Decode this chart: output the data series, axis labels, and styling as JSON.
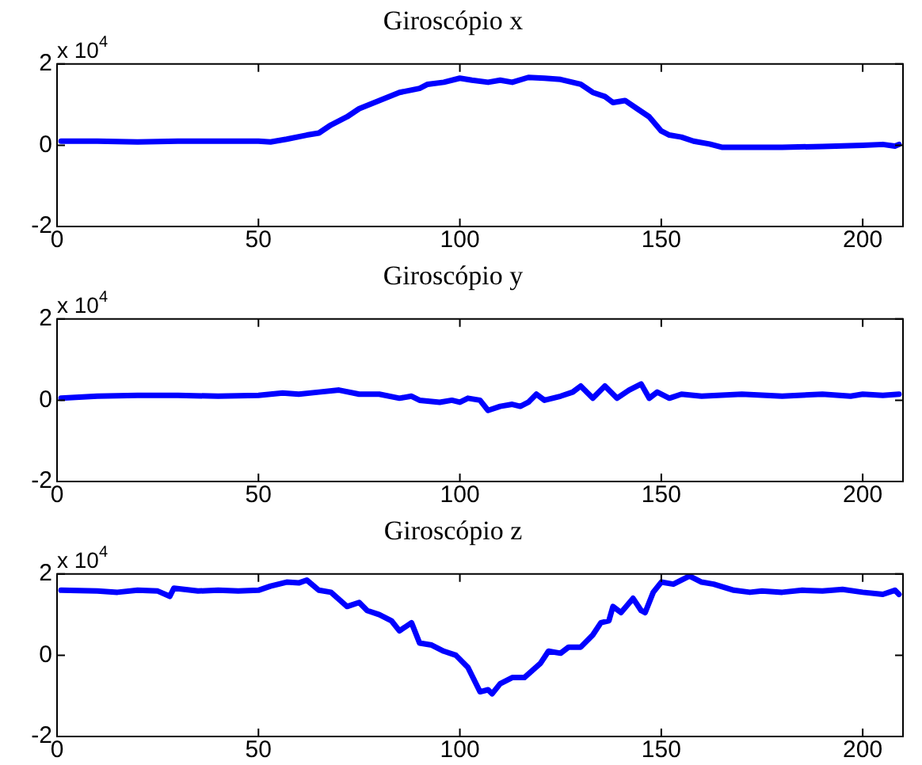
{
  "chart_data": [
    {
      "type": "line",
      "title": "Giroscópio x",
      "annotations": [
        "x 10$^{4}$"
      ],
      "xlim": [
        0,
        210
      ],
      "xticks": [
        0,
        50,
        100,
        150,
        200
      ],
      "ylim": [
        -2,
        2
      ],
      "yticks": [
        -2,
        0,
        2
      ],
      "x": [
        1,
        10,
        20,
        30,
        40,
        50,
        53,
        57,
        62,
        65,
        68,
        72,
        75,
        80,
        85,
        90,
        92,
        96,
        100,
        103,
        107,
        110,
        113,
        117,
        121,
        125,
        130,
        133,
        136,
        138,
        141,
        144,
        147,
        150,
        152,
        155,
        158,
        162,
        165,
        170,
        180,
        190,
        200,
        205,
        208,
        209
      ],
      "series": [
        {
          "color": "#0000ff",
          "values": [
            0.1,
            0.1,
            0.08,
            0.1,
            0.1,
            0.1,
            0.08,
            0.15,
            0.25,
            0.3,
            0.5,
            0.7,
            0.9,
            1.1,
            1.3,
            1.4,
            1.5,
            1.55,
            1.65,
            1.6,
            1.55,
            1.6,
            1.55,
            1.67,
            1.65,
            1.62,
            1.5,
            1.3,
            1.2,
            1.05,
            1.1,
            0.9,
            0.7,
            0.35,
            0.25,
            0.2,
            0.1,
            0.03,
            -0.05,
            -0.05,
            -0.05,
            -0.03,
            0,
            0.02,
            -0.02,
            0.02
          ]
        }
      ]
    },
    {
      "type": "line",
      "title": "Giroscópio y",
      "annotations": [
        "x 10$^{4}$"
      ],
      "xlim": [
        0,
        210
      ],
      "xticks": [
        0,
        50,
        100,
        150,
        200
      ],
      "ylim": [
        -2,
        2
      ],
      "yticks": [
        -2,
        0,
        2
      ],
      "x": [
        1,
        10,
        20,
        30,
        40,
        50,
        56,
        60,
        65,
        70,
        75,
        80,
        85,
        88,
        90,
        95,
        98,
        100,
        102,
        105,
        107,
        110,
        113,
        115,
        117,
        119,
        121,
        125,
        128,
        130,
        133,
        136,
        139,
        142,
        145,
        147,
        149,
        152,
        155,
        160,
        170,
        180,
        190,
        197,
        200,
        205,
        209
      ],
      "series": [
        {
          "color": "#0000ff",
          "values": [
            0.05,
            0.1,
            0.12,
            0.12,
            0.1,
            0.12,
            0.18,
            0.15,
            0.2,
            0.25,
            0.15,
            0.15,
            0.05,
            0.1,
            0.0,
            -0.05,
            0.0,
            -0.05,
            0.05,
            0.0,
            -0.25,
            -0.15,
            -0.1,
            -0.15,
            -0.05,
            0.15,
            0.0,
            0.1,
            0.2,
            0.35,
            0.05,
            0.35,
            0.05,
            0.25,
            0.4,
            0.05,
            0.2,
            0.05,
            0.15,
            0.1,
            0.15,
            0.1,
            0.15,
            0.1,
            0.15,
            0.12,
            0.15
          ]
        }
      ]
    },
    {
      "type": "line",
      "title": "Giroscópio z",
      "annotations": [
        "x 10$^{4}$"
      ],
      "xlim": [
        0,
        210
      ],
      "xticks": [
        0,
        50,
        100,
        150,
        200
      ],
      "ylim": [
        -2,
        2
      ],
      "yticks": [
        -2,
        0,
        2
      ],
      "x": [
        1,
        10,
        15,
        20,
        25,
        28,
        29,
        35,
        40,
        45,
        50,
        53,
        57,
        60,
        62,
        65,
        68,
        72,
        75,
        77,
        80,
        83,
        85,
        88,
        90,
        93,
        96,
        99,
        102,
        105,
        107,
        108,
        110,
        113,
        116,
        120,
        122,
        125,
        127,
        130,
        133,
        135,
        137,
        138,
        140,
        143,
        145,
        146,
        148,
        150,
        153,
        157,
        160,
        163,
        168,
        172,
        175,
        180,
        185,
        190,
        195,
        200,
        205,
        208,
        209
      ],
      "series": [
        {
          "color": "#0000ff",
          "values": [
            1.6,
            1.58,
            1.55,
            1.6,
            1.58,
            1.45,
            1.65,
            1.58,
            1.6,
            1.58,
            1.6,
            1.7,
            1.8,
            1.78,
            1.85,
            1.6,
            1.55,
            1.2,
            1.3,
            1.1,
            1.0,
            0.85,
            0.6,
            0.8,
            0.3,
            0.25,
            0.1,
            0.0,
            -0.3,
            -0.9,
            -0.85,
            -0.95,
            -0.7,
            -0.55,
            -0.55,
            -0.2,
            0.1,
            0.05,
            0.2,
            0.2,
            0.5,
            0.8,
            0.85,
            1.2,
            1.05,
            1.4,
            1.1,
            1.05,
            1.55,
            1.8,
            1.75,
            1.95,
            1.8,
            1.75,
            1.6,
            1.55,
            1.58,
            1.55,
            1.6,
            1.58,
            1.62,
            1.55,
            1.5,
            1.6,
            1.5
          ]
        }
      ]
    }
  ]
}
